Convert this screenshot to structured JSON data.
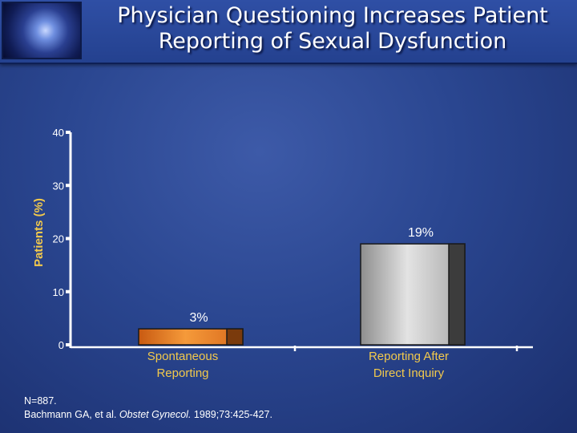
{
  "slide": {
    "title_line1": "Physician Questioning Increases Patient",
    "title_line2": "Reporting of Sexual Dysfunction"
  },
  "chart_data": {
    "type": "bar",
    "title": "Physician Questioning Increases Patient Reporting of Sexual Dysfunction",
    "ylabel": "Patients (%)",
    "xlabel": "",
    "ylim": [
      0,
      40
    ],
    "yticks": [
      0,
      10,
      20,
      30,
      40
    ],
    "categories": [
      {
        "line1": "Spontaneous",
        "line2": "Reporting"
      },
      {
        "line1": "Reporting After",
        "line2": "Direct Inquiry"
      }
    ],
    "values": [
      3,
      19
    ],
    "data_labels": [
      "3%",
      "19%"
    ],
    "colors": [
      "#e8781f",
      "#bdbdbd"
    ],
    "grid": false
  },
  "footnote": {
    "line1": "N=887.",
    "citation_authors": "Bachmann GA, et al. ",
    "citation_journal": "Obstet Gynecol.",
    "citation_rest": " 1989;73:425-427."
  }
}
